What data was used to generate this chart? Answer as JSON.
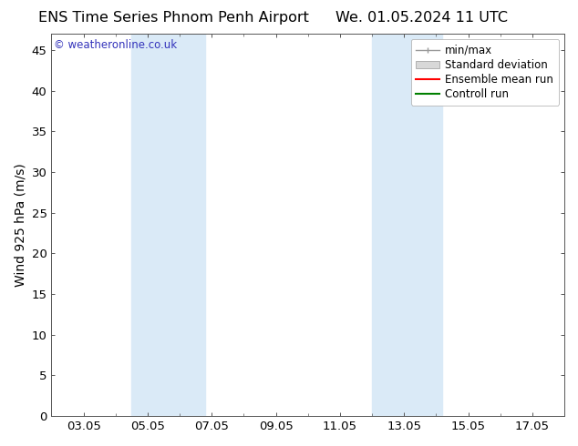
{
  "title_left": "ENS Time Series Phnom Penh Airport",
  "title_right": "We. 01.05.2024 11 UTC",
  "ylabel": "Wind 925 hPa (m/s)",
  "watermark": "© weatheronline.co.uk",
  "ylim": [
    0,
    47
  ],
  "yticks": [
    0,
    5,
    10,
    15,
    20,
    25,
    30,
    35,
    40,
    45
  ],
  "xtick_labels": [
    "03.05",
    "05.05",
    "07.05",
    "09.05",
    "11.05",
    "13.05",
    "15.05",
    "17.05"
  ],
  "xtick_positions": [
    2,
    4,
    6,
    8,
    10,
    12,
    14,
    16
  ],
  "xlim": [
    1,
    17
  ],
  "shaded_bands": [
    {
      "x_start": 3.5,
      "x_end": 5.8,
      "color": "#daeaf7"
    },
    {
      "x_start": 11.0,
      "x_end": 13.2,
      "color": "#daeaf7"
    }
  ],
  "bg_color": "#ffffff",
  "plot_bg_color": "#ffffff",
  "legend_labels": [
    "min/max",
    "Standard deviation",
    "Ensemble mean run",
    "Controll run"
  ],
  "legend_colors_line": [
    "#999999",
    "#cccccc",
    "#ff0000",
    "#008000"
  ],
  "watermark_color": "#3333bb",
  "title_fontsize": 11.5,
  "axis_label_fontsize": 10,
  "tick_fontsize": 9.5,
  "legend_fontsize": 8.5
}
